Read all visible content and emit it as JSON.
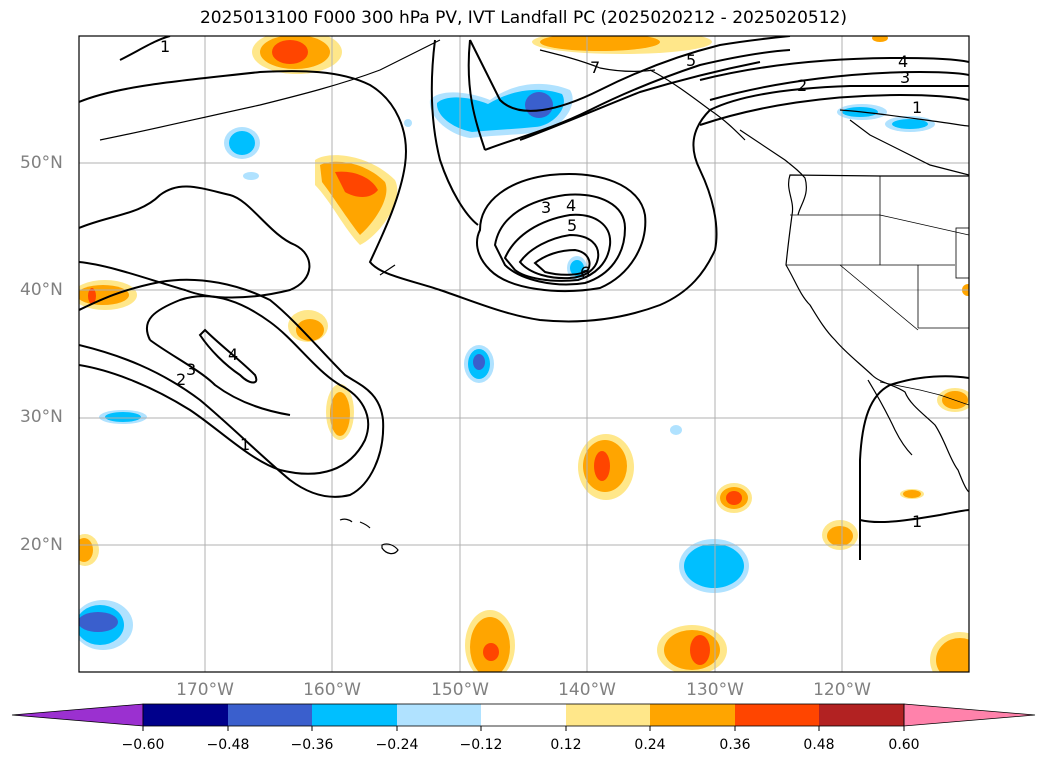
{
  "title": "2025013100 F000 300 hPa PV, IVT Landfall PC (2025020212 - 2025020512)",
  "lat_labels": [
    "50°N",
    "40°N",
    "30°N",
    "20°N"
  ],
  "lon_labels": [
    "170°W",
    "160°W",
    "150°W",
    "140°W",
    "130°W",
    "120°W"
  ],
  "colorbar": {
    "ticks": [
      "−0.60",
      "−0.48",
      "−0.36",
      "−0.24",
      "−0.12",
      "0.12",
      "0.24",
      "0.36",
      "0.48",
      "0.60"
    ],
    "colors": [
      "#9b30d0",
      "#00008b",
      "#3a5fcd",
      "#00bfff",
      "#b0e2ff",
      "#ffffff",
      "#ffe78a",
      "#ffa500",
      "#ff4500",
      "#b22222",
      "#ff82ab"
    ]
  },
  "contour_labels": [
    "1",
    "1",
    "1",
    "1",
    "2",
    "2",
    "3",
    "3",
    "3",
    "4",
    "4",
    "4",
    "5",
    "5",
    "6",
    "7"
  ]
}
